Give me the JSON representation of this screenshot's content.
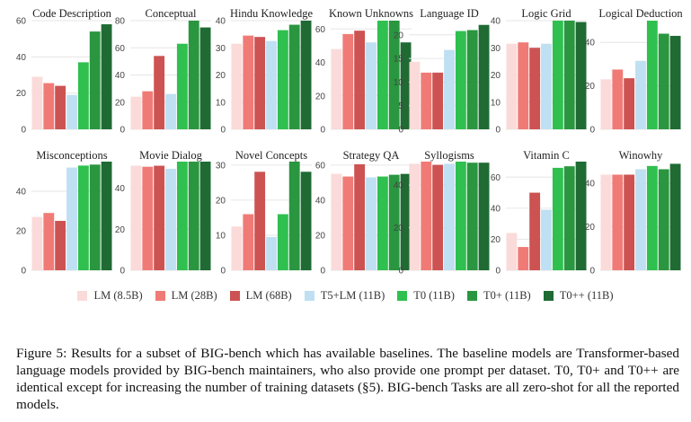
{
  "legend": {
    "series": [
      {
        "name": "LM (8.5B)",
        "color": "#fbdada"
      },
      {
        "name": "LM (28B)",
        "color": "#f07b76"
      },
      {
        "name": "LM (68B)",
        "color": "#cc5352"
      },
      {
        "name": "T5+LM (11B)",
        "color": "#bfe0f2"
      },
      {
        "name": "T0 (11B)",
        "color": "#2fc04f"
      },
      {
        "name": "T0+ (11B)",
        "color": "#2a9640"
      },
      {
        "name": "T0++ (11B)",
        "color": "#1f6b33"
      }
    ]
  },
  "chart_data": [
    {
      "type": "bar",
      "title": "Code Description",
      "ylim": [
        0,
        60
      ],
      "yticks": [
        0,
        20,
        40,
        60
      ],
      "grid": true,
      "series_names": [
        "LM (8.5B)",
        "LM (28B)",
        "LM (68B)",
        "T5+LM (11B)",
        "T0 (11B)",
        "T0+ (11B)",
        "T0++ (11B)"
      ],
      "values": [
        29,
        25.5,
        24,
        19,
        37,
        54,
        58
      ]
    },
    {
      "type": "bar",
      "title": "Conceptual",
      "ylim": [
        0,
        80
      ],
      "yticks": [
        0,
        20,
        40,
        60,
        80
      ],
      "grid": true,
      "series_names": [
        "LM (8.5B)",
        "LM (28B)",
        "LM (68B)",
        "T5+LM (11B)",
        "T0 (11B)",
        "T0+ (11B)",
        "T0++ (11B)"
      ],
      "values": [
        24,
        28,
        54,
        26,
        63,
        81,
        75
      ]
    },
    {
      "type": "bar",
      "title": "Hindu Knowledge",
      "ylim": [
        0,
        40
      ],
      "yticks": [
        0,
        10,
        20,
        30,
        40
      ],
      "grid": true,
      "series_names": [
        "LM (8.5B)",
        "LM (28B)",
        "LM (68B)",
        "T5+LM (11B)",
        "T0 (11B)",
        "T0+ (11B)",
        "T0++ (11B)"
      ],
      "values": [
        31.5,
        34.5,
        34,
        32.5,
        36.5,
        38.5,
        40
      ]
    },
    {
      "type": "bar",
      "title": "Known Unknowns",
      "ylim": [
        0,
        65
      ],
      "yticks": [
        0,
        20,
        40,
        60
      ],
      "grid": true,
      "series_names": [
        "LM (8.5B)",
        "LM (28B)",
        "LM (68B)",
        "T5+LM (11B)",
        "T0 (11B)",
        "T0+ (11B)",
        "T0++ (11B)"
      ],
      "values": [
        48,
        57,
        59,
        52,
        65,
        65,
        52
      ]
    },
    {
      "type": "bar",
      "title": "Language ID",
      "ylim": [
        0,
        23
      ],
      "yticks": [
        0,
        5,
        10,
        15,
        20
      ],
      "grid": true,
      "series_names": [
        "LM (8.5B)",
        "LM (28B)",
        "LM (68B)",
        "T5+LM (11B)",
        "T0 (11B)",
        "T0+ (11B)",
        "T0++ (11B)"
      ],
      "values": [
        14.3,
        12,
        12,
        16.8,
        20.8,
        21,
        22.1
      ]
    },
    {
      "type": "bar",
      "title": "Logic Grid",
      "ylim": [
        0,
        40
      ],
      "yticks": [
        0,
        10,
        20,
        30,
        40
      ],
      "grid": true,
      "series_names": [
        "LM (8.5B)",
        "LM (28B)",
        "LM (68B)",
        "T5+LM (11B)",
        "T0 (11B)",
        "T0+ (11B)",
        "T0++ (11B)"
      ],
      "values": [
        31.5,
        32,
        30,
        31.5,
        40,
        40,
        39.5
      ]
    },
    {
      "type": "bar",
      "title": "Logical Deduction",
      "ylim": [
        0,
        50
      ],
      "yticks": [
        0,
        20,
        40
      ],
      "grid": true,
      "series_names": [
        "LM (8.5B)",
        "LM (28B)",
        "LM (68B)",
        "T5+LM (11B)",
        "T0 (11B)",
        "T0+ (11B)",
        "T0++ (11B)"
      ],
      "values": [
        23,
        27.5,
        23.5,
        31.5,
        50,
        44,
        43
      ]
    },
    {
      "type": "bar",
      "title": "Misconceptions",
      "ylim": [
        0,
        55
      ],
      "yticks": [
        0,
        20,
        40
      ],
      "grid": true,
      "series_names": [
        "LM (8.5B)",
        "LM (28B)",
        "LM (68B)",
        "T5+LM (11B)",
        "T0 (11B)",
        "T0+ (11B)",
        "T0++ (11B)"
      ],
      "values": [
        27,
        29,
        25,
        52,
        53,
        53.5,
        55
      ]
    },
    {
      "type": "bar",
      "title": "Movie Dialog",
      "ylim": [
        0,
        53
      ],
      "yticks": [
        0,
        20,
        40
      ],
      "grid": true,
      "series_names": [
        "LM (8.5B)",
        "LM (28B)",
        "LM (68B)",
        "T5+LM (11B)",
        "T0 (11B)",
        "T0+ (11B)",
        "T0++ (11B)"
      ],
      "values": [
        51,
        50.5,
        51,
        49.5,
        53,
        53,
        53
      ]
    },
    {
      "type": "bar",
      "title": "Novel Concepts",
      "ylim": [
        0,
        31
      ],
      "yticks": [
        0,
        10,
        20,
        30
      ],
      "grid": true,
      "series_names": [
        "LM (8.5B)",
        "LM (28B)",
        "LM (68B)",
        "T5+LM (11B)",
        "T0 (11B)",
        "T0+ (11B)",
        "T0++ (11B)"
      ],
      "values": [
        12.5,
        16,
        28.1,
        9.5,
        16,
        31.3,
        28.1
      ]
    },
    {
      "type": "bar",
      "title": "Strategy QA",
      "ylim": [
        0,
        62
      ],
      "yticks": [
        0,
        20,
        40,
        60
      ],
      "grid": true,
      "series_names": [
        "LM (8.5B)",
        "LM (28B)",
        "LM (68B)",
        "T5+LM (11B)",
        "T0 (11B)",
        "T0+ (11B)",
        "T0++ (11B)"
      ],
      "values": [
        55,
        53.5,
        60.5,
        53,
        53.5,
        54.5,
        55
      ]
    },
    {
      "type": "bar",
      "title": "Syllogisms",
      "ylim": [
        0,
        51
      ],
      "yticks": [
        0,
        20,
        40
      ],
      "grid": true,
      "series_names": [
        "LM (8.5B)",
        "LM (28B)",
        "LM (68B)",
        "T5+LM (11B)",
        "T0 (11B)",
        "T0+ (11B)",
        "T0++ (11B)"
      ],
      "values": [
        50,
        51,
        49.5,
        50,
        52,
        50.5,
        50.5
      ]
    },
    {
      "type": "bar",
      "title": "Vitamin C",
      "ylim": [
        0,
        70
      ],
      "yticks": [
        0,
        20,
        40,
        60
      ],
      "grid": true,
      "series_names": [
        "LM (8.5B)",
        "LM (28B)",
        "LM (68B)",
        "T5+LM (11B)",
        "T0 (11B)",
        "T0+ (11B)",
        "T0++ (11B)"
      ],
      "values": [
        24,
        15,
        50,
        39,
        66,
        67,
        71
      ]
    },
    {
      "type": "bar",
      "title": "Winowhy",
      "ylim": [
        0,
        50
      ],
      "yticks": [
        0,
        20,
        40
      ],
      "grid": true,
      "series_names": [
        "LM (8.5B)",
        "LM (28B)",
        "LM (68B)",
        "T5+LM (11B)",
        "T0 (11B)",
        "T0+ (11B)",
        "T0++ (11B)"
      ],
      "values": [
        44,
        44,
        44,
        46.5,
        48,
        46.5,
        49
      ]
    }
  ],
  "caption": "Figure 5: Results for a subset of BIG-bench which has available baselines. The baseline models are Transformer-based language models provided by BIG-bench maintainers, who also provide one prompt per dataset. T0, T0+ and T0++ are identical except for increasing the number of training datasets (§5). BIG-bench Tasks are all zero-shot for all the reported models."
}
